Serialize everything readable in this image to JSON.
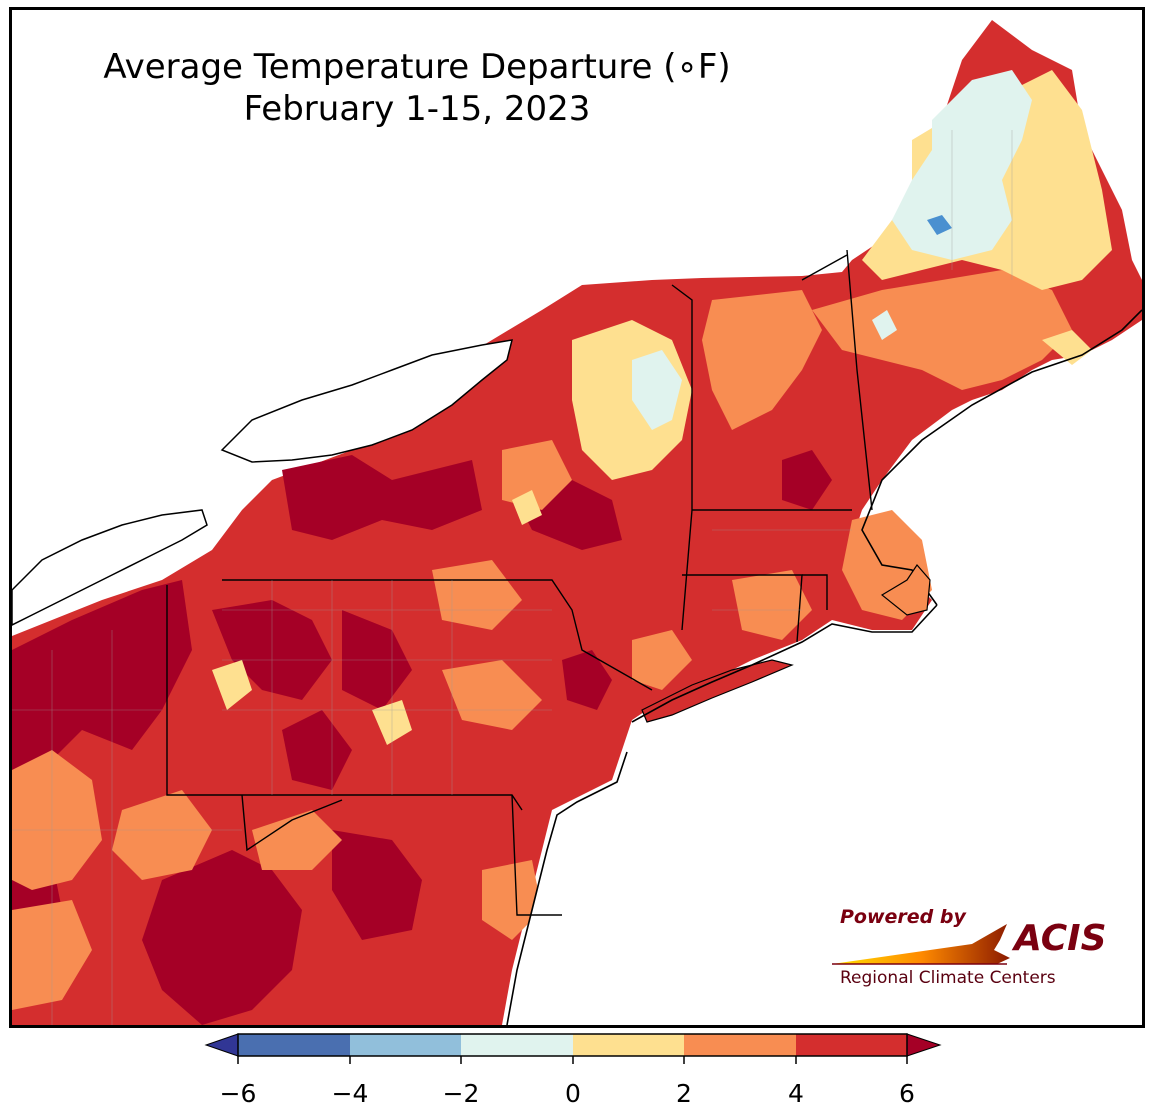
{
  "title": {
    "line1": "Average Temperature Departure (∘F)",
    "line2": "February 1-15, 2023"
  },
  "map": {
    "region": "Northeast United States",
    "ocean_color": "#ffffff",
    "border_color": "#000000"
  },
  "legend": {
    "ticks": [
      "−6",
      "−4",
      "−2",
      "0",
      "2",
      "4",
      "6"
    ],
    "bins": [
      {
        "range": "< -6",
        "color": "#313695"
      },
      {
        "range": "-6 to -4",
        "color": "#4a6fb0"
      },
      {
        "range": "-4 to -2",
        "color": "#91bfdb"
      },
      {
        "range": "-2 to 0",
        "color": "#e0f3ee"
      },
      {
        "range": "0 to 2",
        "color": "#fee090"
      },
      {
        "range": "2 to 4",
        "color": "#f88d52"
      },
      {
        "range": "4 to 6",
        "color": "#d42e2e"
      },
      {
        "range": "> 6",
        "color": "#a50026"
      }
    ]
  },
  "logo": {
    "powered_by": "Powered by",
    "acis": "ACIS",
    "subtitle": "Regional Climate Centers"
  }
}
